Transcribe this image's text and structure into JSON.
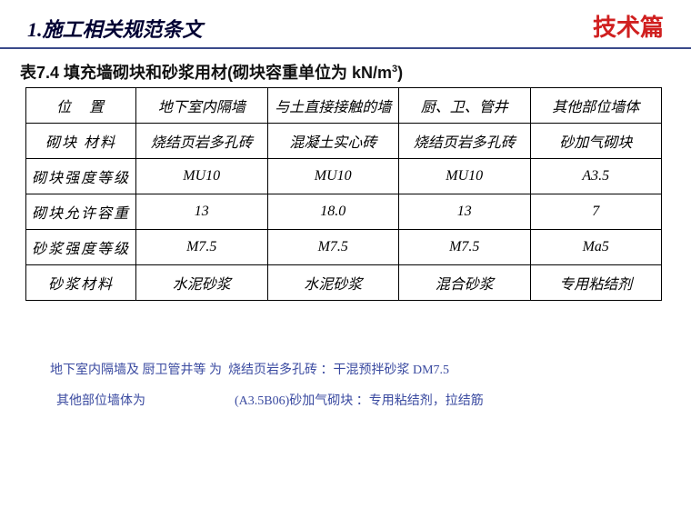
{
  "header": {
    "section_title": "1.施工相关规范条文",
    "corner_label": "技术篇"
  },
  "table": {
    "caption_prefix": "表7.4 填充墙砌块和砂浆用材(砌块容重单位为 kN/m",
    "caption_exp": "3",
    "caption_suffix": ")",
    "row_headers": [
      "位　置",
      "砌块 材料",
      "砌块强度等级",
      "砌块允许容重",
      "砂浆强度等级",
      "砂浆材料"
    ],
    "columns": [
      "地下室内隔墙",
      "与土直接接触的墙",
      "厨、卫、管井",
      "其他部位墙体"
    ],
    "rows": [
      [
        "烧结页岩多孔砖",
        "混凝土实心砖",
        "烧结页岩多孔砖",
        "砂加气砌块"
      ],
      [
        "MU10",
        "MU10",
        "MU10",
        "A3.5"
      ],
      [
        "13",
        "18.0",
        "13",
        "7"
      ],
      [
        "M7.5",
        "M7.5",
        "M7.5",
        "Ma5"
      ],
      [
        "水泥砂浆",
        "水泥砂浆",
        "混合砂浆",
        "专用粘结剂"
      ]
    ],
    "red_cells": [
      [
        2,
        3
      ],
      [
        3,
        0
      ],
      [
        3,
        1
      ],
      [
        3,
        2
      ],
      [
        3,
        3
      ],
      [
        4,
        3
      ]
    ]
  },
  "notes": {
    "line1": "地下室内隔墙及 厨卫管井等 为  烧结页岩多孔砖 ：干混预拌砂浆 DM7.5",
    "line2": "  其他部位墙体为                            (A3.5B06)砂加气砌块 ：专用粘结剂，拉结筋"
  },
  "colors": {
    "accent_blue": "#3a4aa0",
    "red": "#c05030",
    "corner_red": "#d02020"
  }
}
